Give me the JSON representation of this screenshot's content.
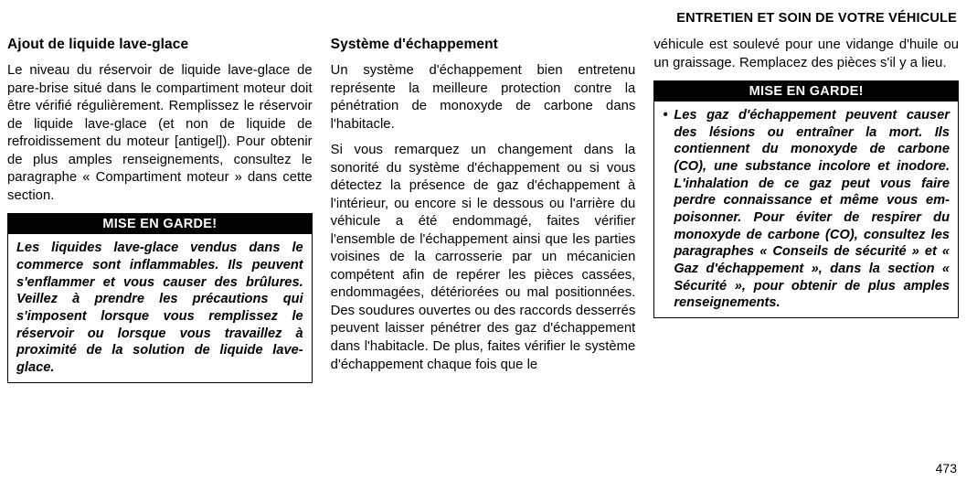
{
  "header": "ENTRETIEN ET SOIN DE VOTRE VÉHICULE",
  "page_number": "473",
  "col1": {
    "h": "Ajout de liquide lave-glace",
    "p1": "Le niveau du réservoir de liquide lave-glace de pare-brise situé dans le compar­timent moteur doit être vérifié régulière­ment. Remplissez le réservoir de liquide lave-glace (et non de liquide de refroidis­sement du moteur [antigel]). Pour obtenir de plus amples renseignements, consul­tez le paragraphe « Compartiment mo­teur » dans cette section.",
    "warn_h": "MISE EN GARDE!",
    "warn_b": "Les liquides lave-glace vendus dans le commerce sont inflammables. Ils peuvent s'enflammer et vous causer des brûlures. Veillez à prendre les précautions qui s'imposent lorsque vous remplissez le réservoir ou lors­que vous travaillez à proximité de la solution de liquide lave-glace."
  },
  "col2": {
    "h": "Système d'échappement",
    "p1": "Un système d'échappement bien entre­tenu représente la meilleure protection contre la pénétration de monoxyde de carbone dans l'habitacle.",
    "p2": "Si vous remarquez un changement dans la sonorité du système d'échappement ou si vous détectez la présence de gaz d'échappement à l'intérieur, ou encore si le dessous ou l'arrière du véhicule a été endommagé, faites vérifier l'ensemble de l'échappement ainsi que les parties voisi­nes de la carrosserie par un mécanicien compétent afin de repérer les pièces cas­sées, endommagées, détériorées ou mal positionnées. Des soudures ouvertes ou des raccords desserrés peuvent laisser pénétrer des gaz d'échappement dans l'habitacle. De plus, faites vérifier le sys­tème d'échappement chaque fois que le"
  },
  "col3": {
    "p1": "véhicule est soulevé pour une vidange d'huile ou un graissage. Remplacez des pièces s'il y a lieu.",
    "warn_h": "MISE EN GARDE!",
    "warn_b": "Les gaz d'échappement peuvent causer des lésions ou entraîner la mort. Ils contiennent du monoxyde de carbone (CO), une substance incolore et inodore. L'inhalation de ce gaz peut vous faire perdre connaissance et même vous em­poisonner. Pour éviter de respirer du monoxyde de carbone (CO), consultez les paragraphes « Conseils de sécurité » et « Gaz d'échappement », dans la section « Sécurité », pour obtenir de plus amples renseignements."
  }
}
